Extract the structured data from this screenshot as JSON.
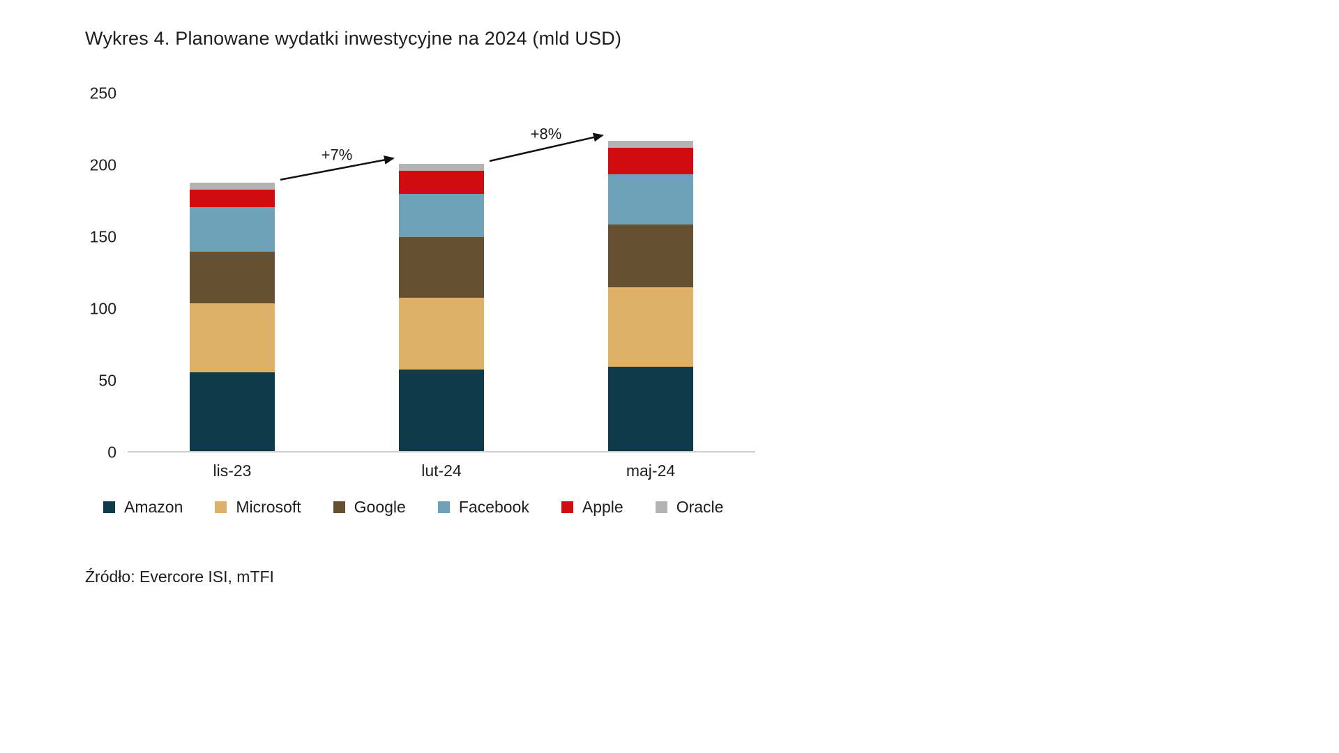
{
  "chart_data": {
    "type": "bar",
    "stacked": true,
    "title": "Wykres 4. Planowane wydatki inwestycyjne na 2024 (mld USD)",
    "source": "Źródło: Evercore ISI, mTFI",
    "categories": [
      "lis-23",
      "lut-24",
      "maj-24"
    ],
    "series": [
      {
        "name": "Amazon",
        "color": "#0e3a4a",
        "values": [
          55,
          57,
          59
        ]
      },
      {
        "name": "Microsoft",
        "color": "#ddb168",
        "values": [
          48,
          50,
          55
        ]
      },
      {
        "name": "Google",
        "color": "#655031",
        "values": [
          36,
          42,
          44
        ]
      },
      {
        "name": "Facebook",
        "color": "#6fa2b8",
        "values": [
          31,
          30,
          35
        ]
      },
      {
        "name": "Apple",
        "color": "#cf0c10",
        "values": [
          12,
          16,
          18
        ]
      },
      {
        "name": "Oracle",
        "color": "#b3b3b3",
        "values": [
          5,
          5,
          5
        ]
      }
    ],
    "annotations": [
      {
        "label": "+7%",
        "from": 0,
        "to": 1
      },
      {
        "label": "+8%",
        "from": 1,
        "to": 2
      }
    ],
    "yticks": [
      0,
      50,
      100,
      150,
      200,
      250
    ],
    "ylim": [
      0,
      250
    ],
    "xlabel": "",
    "ylabel": "",
    "grid": false,
    "legend_position": "bottom"
  }
}
